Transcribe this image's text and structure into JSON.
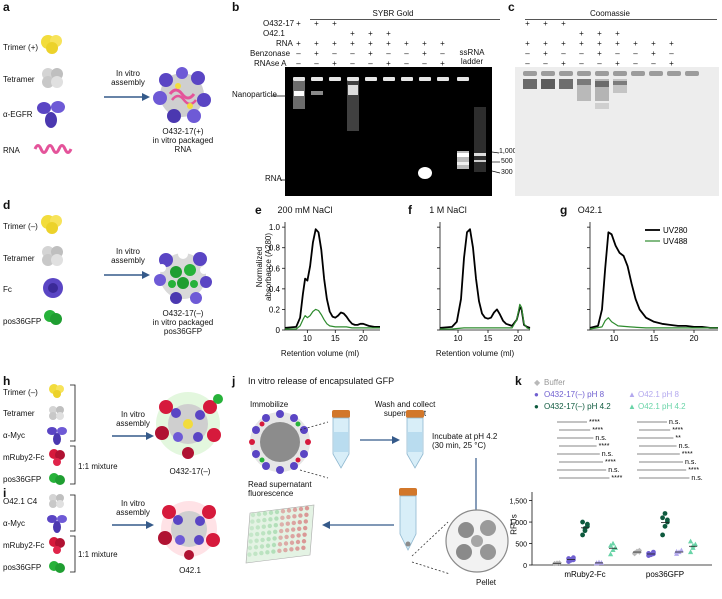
{
  "panels": {
    "a": {
      "letter": "a",
      "items": [
        "Trimer (+)",
        "Tetramer",
        "α-EGFR",
        "RNA"
      ],
      "arrow_label": "In vitro\nassembly",
      "caption": "O432-17(+)\nin vitro packaged\nRNA"
    },
    "b": {
      "letter": "b",
      "title": "SYBR Gold",
      "rows": [
        {
          "label": "O432-17",
          "marks": [
            "+",
            "+",
            "+",
            "",
            "",
            "",
            "",
            "",
            "",
            ""
          ]
        },
        {
          "label": "O42.1",
          "marks": [
            "",
            "",
            "",
            "+",
            "+",
            "+",
            "",
            "",
            "",
            ""
          ]
        },
        {
          "label": "RNA",
          "marks": [
            "+",
            "+",
            "+",
            "+",
            "+",
            "+",
            "+",
            "+",
            "+",
            ""
          ]
        },
        {
          "label": "Benzonase",
          "marks": [
            "–",
            "+",
            "–",
            "–",
            "+",
            "–",
            "–",
            "+",
            "–",
            ""
          ]
        },
        {
          "label": "RNAse A",
          "marks": [
            "–",
            "–",
            "+",
            "–",
            "–",
            "+",
            "–",
            "–",
            "+",
            ""
          ]
        }
      ],
      "ssrna_label": "ssRNA\nladder",
      "nanoparticle_label": "Nanoparticle",
      "rna_label": "RNA",
      "ladder_ticks": [
        "1,000",
        "500",
        "300"
      ]
    },
    "c": {
      "letter": "c",
      "title": "Coomassie",
      "rows": [
        {
          "marks": [
            "+",
            "+",
            "+",
            "",
            "",
            "",
            "",
            "",
            "",
            ""
          ]
        },
        {
          "marks": [
            "",
            "",
            "",
            "+",
            "+",
            "+",
            "",
            "",
            "",
            ""
          ]
        },
        {
          "marks": [
            "+",
            "+",
            "+",
            "+",
            "+",
            "+",
            "+",
            "+",
            "+",
            ""
          ]
        },
        {
          "marks": [
            "–",
            "+",
            "–",
            "–",
            "+",
            "–",
            "–",
            "+",
            "–",
            ""
          ]
        },
        {
          "marks": [
            "–",
            "–",
            "+",
            "–",
            "–",
            "+",
            "–",
            "–",
            "+",
            ""
          ]
        }
      ]
    },
    "d": {
      "letter": "d",
      "items": [
        "Trimer (–)",
        "Tetramer",
        "Fc",
        "pos36GFP"
      ],
      "arrow_label": "In vitro\nassembly",
      "caption": "O432-17(–)\nin vitro packaged\npos36GFP"
    },
    "e": {
      "letter": "e",
      "title": "200 mM NaCl"
    },
    "f": {
      "letter": "f",
      "title": "1 M NaCl"
    },
    "g": {
      "letter": "g",
      "title": "O42.1"
    },
    "h": {
      "letter": "h",
      "items": [
        "Trimer (–)",
        "Tetramer",
        "α-Myc",
        "mRuby2-Fc",
        "pos36GFP"
      ],
      "mixture": "1:1 mixture",
      "arrow_label": "In vitro\nassembly",
      "caption": "O432-17(–)"
    },
    "i": {
      "letter": "i",
      "items": [
        "O42.1 C4",
        "α-Myc",
        "mRuby2-Fc",
        "pos36GFP"
      ],
      "mixture": "1:1 mixture",
      "arrow_label": "In vitro\nassembly",
      "caption": "O42.1"
    },
    "j": {
      "letter": "j",
      "title": "In vitro release of encapsulated GFP",
      "immobilize": "Immobilize",
      "wash": "Wash and collect\nsupernatant",
      "incubate": "Incubate at pH 4.2\n(30 min, 25 °C)",
      "read": "Read supernatant\nfluorescence",
      "pellet": "Pellet"
    },
    "k": {
      "letter": "k",
      "legend": [
        "Buffer",
        "O432-17(–) pH 8",
        "O42.1 pH 8",
        "O432-17(–) pH 4.2",
        "O42.1 pH 4.2"
      ],
      "sig_left": [
        "****",
        "****",
        "n.s.",
        "****",
        "n.s.",
        "****",
        "n.s.",
        "****"
      ],
      "sig_right": [
        "n.s.",
        "****",
        "**",
        "n.s.",
        "****",
        "n.s.",
        "****",
        "n.s."
      ]
    }
  },
  "chart_data": [
    {
      "type": "line",
      "title": "200 mM NaCl",
      "xlabel": "Retention volume (ml)",
      "ylabel": "Normalized\nabsorbance (A280)",
      "xlim": [
        6,
        23
      ],
      "ylim": [
        0,
        1.05
      ],
      "xticks": [
        10,
        15,
        20
      ],
      "yticks": [
        0,
        0.2,
        0.4,
        0.6,
        0.8,
        1.0
      ],
      "series": [
        {
          "name": "UV280",
          "color": "#000000",
          "x": [
            6,
            8,
            8.7,
            9.2,
            9.6,
            10.0,
            10.5,
            11.0,
            11.5,
            12.0,
            12.5,
            13.0,
            13.5,
            14.0,
            14.5,
            15.0,
            15.5,
            16.0,
            16.5,
            17.0,
            17.5,
            18.0,
            18.5,
            19.0,
            19.5,
            20,
            21,
            22,
            23
          ],
          "y": [
            0.02,
            0.03,
            0.12,
            0.35,
            0.5,
            0.48,
            0.62,
            0.85,
            0.98,
            0.95,
            0.78,
            0.5,
            0.3,
            0.18,
            0.13,
            0.12,
            0.14,
            0.17,
            0.16,
            0.13,
            0.09,
            0.06,
            0.05,
            0.05,
            0.06,
            0.06,
            0.04,
            0.03,
            0.03
          ]
        },
        {
          "name": "UV488",
          "color": "#2e8b2e",
          "x": [
            6,
            8,
            8.7,
            9.2,
            9.6,
            10.0,
            10.5,
            11.0,
            11.5,
            12.0,
            12.5,
            13.0,
            13.5,
            14.0,
            15,
            16,
            17,
            18,
            19,
            20,
            21,
            22,
            23
          ],
          "y": [
            0.01,
            0.01,
            0.04,
            0.1,
            0.14,
            0.12,
            0.14,
            0.18,
            0.2,
            0.19,
            0.15,
            0.1,
            0.06,
            0.04,
            0.03,
            0.03,
            0.03,
            0.02,
            0.02,
            0.02,
            0.02,
            0.02,
            0.02
          ]
        }
      ]
    },
    {
      "type": "line",
      "title": "1 M NaCl",
      "xlabel": "Retention volume (ml)",
      "xlim": [
        7,
        22
      ],
      "ylim": [
        0,
        1.05
      ],
      "xticks": [
        10,
        15,
        20
      ],
      "series": [
        {
          "name": "UV280",
          "color": "#000000",
          "x": [
            7,
            9,
            9.8,
            10.5,
            11.0,
            11.5,
            12.0,
            12.5,
            13.0,
            13.5,
            14.0,
            14.5,
            15,
            15.5,
            16,
            16.5,
            17,
            17.5,
            18,
            19,
            19.8,
            20.3,
            20.6,
            21,
            21.5,
            22
          ],
          "y": [
            0.02,
            0.03,
            0.08,
            0.3,
            0.7,
            0.95,
            0.98,
            0.8,
            0.5,
            0.28,
            0.16,
            0.12,
            0.11,
            0.12,
            0.17,
            0.2,
            0.15,
            0.09,
            0.06,
            0.04,
            0.1,
            0.22,
            0.2,
            0.05,
            0.03,
            0.02
          ]
        },
        {
          "name": "UV488",
          "color": "#2e8b2e",
          "x": [
            7,
            9,
            11,
            13,
            15,
            17,
            19,
            19.8,
            20.3,
            20.6,
            21,
            21.5,
            22
          ],
          "y": [
            0.01,
            0.01,
            0.02,
            0.02,
            0.02,
            0.02,
            0.02,
            0.1,
            0.25,
            0.22,
            0.06,
            0.02,
            0.01
          ]
        }
      ]
    },
    {
      "type": "line",
      "title": "O42.1",
      "xlabel": "",
      "xlim": [
        7,
        23
      ],
      "ylim": [
        0,
        1.05
      ],
      "xticks": [
        10,
        15,
        20
      ],
      "legend": [
        "UV280",
        "UV488"
      ],
      "series": [
        {
          "name": "UV280",
          "color": "#000000",
          "x": [
            7,
            8,
            8.5,
            8.9,
            9.3,
            9.7,
            10.2,
            10.7,
            11.2,
            11.7,
            12.2,
            12.7,
            13.2,
            14,
            15,
            16,
            17,
            18,
            19,
            20,
            21,
            22,
            23
          ],
          "y": [
            0.02,
            0.04,
            0.2,
            0.6,
            0.95,
            0.93,
            0.82,
            0.75,
            0.72,
            0.62,
            0.45,
            0.3,
            0.2,
            0.12,
            0.08,
            0.06,
            0.05,
            0.04,
            0.04,
            0.03,
            0.03,
            0.02,
            0.02
          ]
        },
        {
          "name": "UV488",
          "color": "#2e8b2e",
          "x": [
            7,
            8.5,
            8.9,
            9.3,
            9.7,
            10.5,
            12,
            14,
            17,
            20,
            23
          ],
          "y": [
            0.01,
            0.03,
            0.09,
            0.12,
            0.08,
            0.04,
            0.03,
            0.02,
            0.02,
            0.02,
            0.02
          ]
        }
      ]
    },
    {
      "type": "scatter",
      "ylabel": "RFUs",
      "categories": [
        "mRuby2-Fc",
        "pos36GFP"
      ],
      "ylim": [
        0,
        1700
      ],
      "yticks": [
        0,
        500,
        1000,
        1500
      ],
      "yticklabels": [
        "0",
        "500",
        "1,000",
        "1,500"
      ],
      "series": [
        {
          "name": "Buffer",
          "color": "#b9b9b9",
          "values": [
            [
              30,
              40,
              50,
              35,
              45
            ],
            [
              280,
              320,
              300,
              260,
              310,
              340
            ]
          ]
        },
        {
          "name": "O432-17(–) pH 8",
          "color": "#7060d0",
          "values": [
            [
              80,
              130,
              170,
              150,
              110,
              120
            ],
            [
              220,
              250,
              300,
              270,
              240,
              260
            ]
          ]
        },
        {
          "name": "O432-17(–) pH 4.2",
          "color": "#0e5a3e",
          "values": [
            [
              700,
              800,
              900,
              1000,
              850,
              950
            ],
            [
              700,
              900,
              1000,
              1100,
              1200,
              1050
            ]
          ]
        },
        {
          "name": "O42.1 pH 8",
          "color": "#b3a8ee",
          "values": [
            [
              40,
              60,
              50,
              45
            ],
            [
              260,
              300,
              340,
              310
            ]
          ]
        },
        {
          "name": "O42.1 pH 4.2",
          "color": "#6ad4a8",
          "values": [
            [
              250,
              350,
              400,
              450,
              500
            ],
            [
              300,
              400,
              480,
              550,
              450
            ]
          ]
        }
      ]
    }
  ]
}
